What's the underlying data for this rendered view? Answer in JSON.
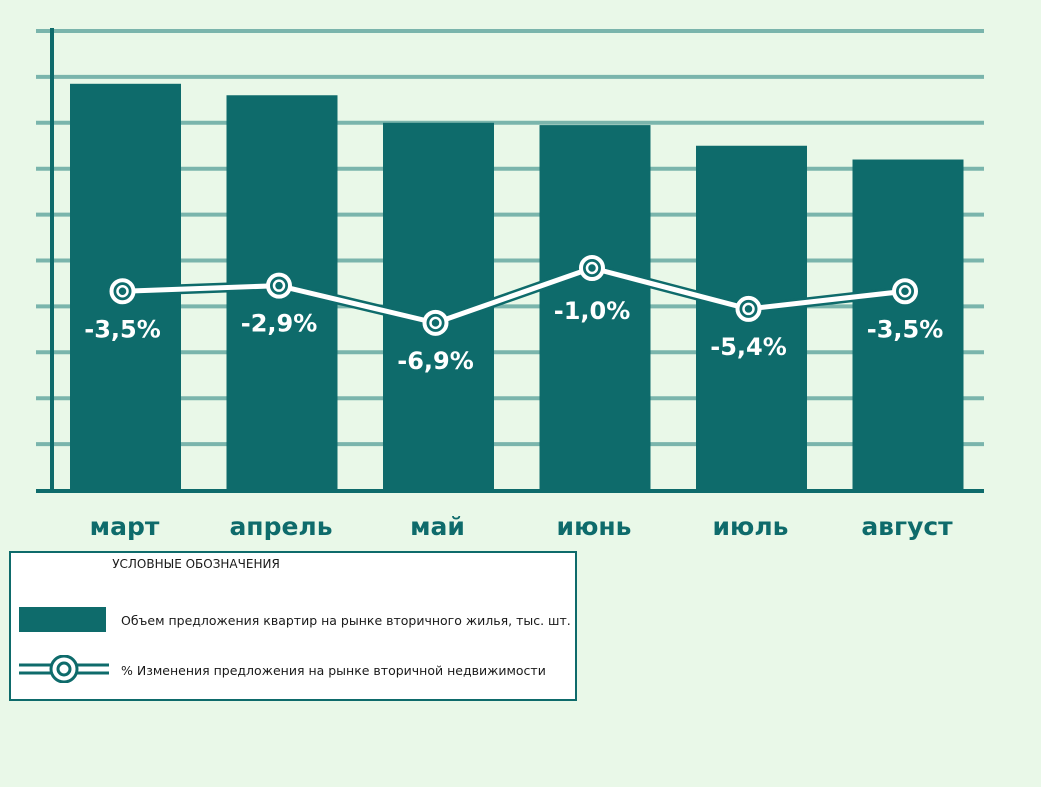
{
  "chart_data": {
    "type": "bar",
    "categories": [
      "март",
      "апрель",
      "май",
      "июнь",
      "июль",
      "август"
    ],
    "series": [
      {
        "name": "Объем предложения квартир на рынке вторичного жилья, тыс. шт.",
        "type": "bar",
        "values": [
          88.5,
          86,
          80,
          79.5,
          75,
          72
        ]
      },
      {
        "name": "% Изменения предложения на рынке вторичной недвижимости",
        "type": "line",
        "values": [
          -3.5,
          -2.9,
          -6.9,
          -1.0,
          -5.4,
          -3.5
        ],
        "labels": [
          "-3,5%",
          "-2,9%",
          "-6,9%",
          "-1,0%",
          "-5,4%",
          "-3,5%"
        ]
      }
    ],
    "ylim": [
      0,
      100
    ],
    "grid": true,
    "title": "",
    "xlabel": "",
    "ylabel": "",
    "colors": {
      "bar": "#0e6b6b",
      "grid": "#7ab5ac",
      "axis": "#0e6b6b",
      "line": "#ffffff",
      "category_text": "#0e6b6b",
      "background": "#e9f8e8"
    }
  },
  "legend": {
    "title": "УСЛОВНЫЕ ОБОЗНАЧЕНИЯ",
    "bar_label": "Объем предложения квартир на рынке вторичного жилья, тыс. шт.",
    "line_label": "% Изменения предложения на рынке вторичной недвижимости"
  }
}
